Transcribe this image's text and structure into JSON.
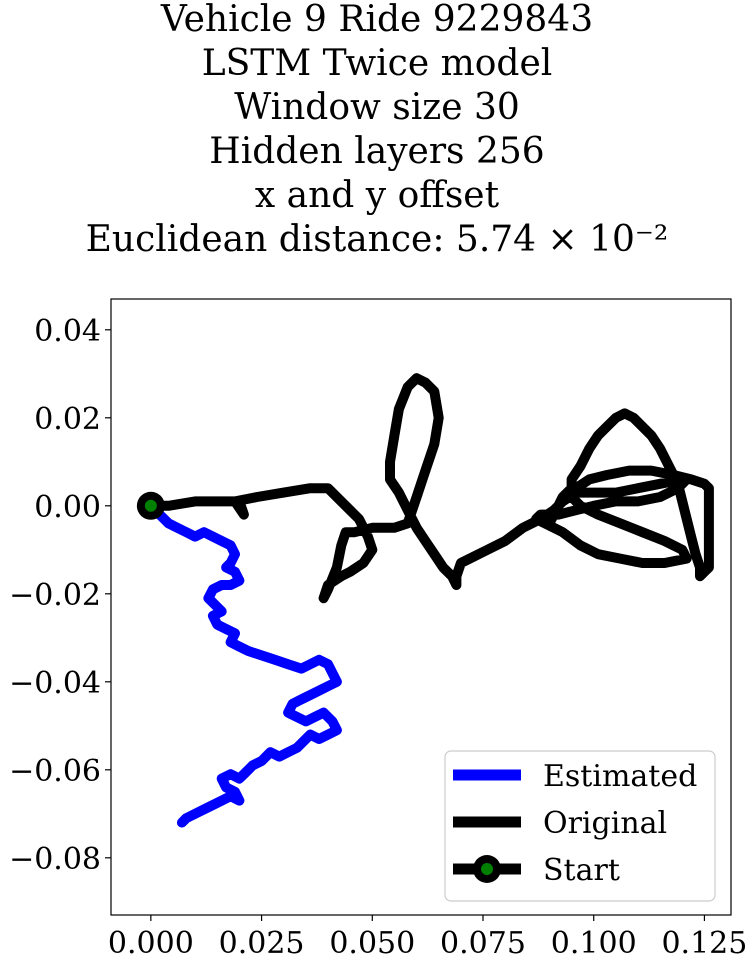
{
  "chart_data": {
    "type": "line",
    "title_lines": [
      "Vehicle 9 Ride 9229843",
      "LSTM Twice model",
      "Window size 30",
      "Hidden layers 256",
      "x and y offset",
      "Euclidean distance: 5.74 × 10⁻²"
    ],
    "xlim": [
      -0.009,
      0.131
    ],
    "ylim": [
      -0.093,
      0.047
    ],
    "xticks": [
      {
        "value": 0.0,
        "label": "0.000"
      },
      {
        "value": 0.025,
        "label": "0.025"
      },
      {
        "value": 0.05,
        "label": "0.050"
      },
      {
        "value": 0.075,
        "label": "0.075"
      },
      {
        "value": 0.1,
        "label": "0.100"
      },
      {
        "value": 0.125,
        "label": "0.125"
      }
    ],
    "yticks": [
      {
        "value": 0.04,
        "label": "0.04"
      },
      {
        "value": 0.02,
        "label": "0.02"
      },
      {
        "value": 0.0,
        "label": "0.00"
      },
      {
        "value": -0.02,
        "label": "−0.02"
      },
      {
        "value": -0.04,
        "label": "−0.04"
      },
      {
        "value": -0.06,
        "label": "−0.06"
      },
      {
        "value": -0.08,
        "label": "−0.08"
      }
    ],
    "grid": false,
    "legend_position": "bottom-right",
    "series": [
      {
        "name": "Estimated",
        "color": "#0000ff",
        "x": [
          0.0,
          0.002,
          0.004,
          0.006,
          0.008,
          0.01,
          0.012,
          0.014,
          0.016,
          0.018,
          0.019,
          0.018,
          0.017,
          0.019,
          0.02,
          0.018,
          0.016,
          0.014,
          0.013,
          0.015,
          0.016,
          0.014,
          0.015,
          0.017,
          0.019,
          0.018,
          0.02,
          0.022,
          0.025,
          0.028,
          0.031,
          0.034,
          0.036,
          0.038,
          0.04,
          0.041,
          0.042,
          0.04,
          0.038,
          0.036,
          0.034,
          0.032,
          0.031,
          0.033,
          0.035,
          0.037,
          0.039,
          0.041,
          0.042,
          0.04,
          0.038,
          0.036,
          0.034,
          0.033,
          0.031,
          0.029,
          0.027,
          0.025,
          0.023,
          0.022,
          0.021,
          0.02,
          0.018,
          0.016,
          0.017,
          0.019,
          0.02,
          0.018,
          0.016,
          0.014,
          0.012,
          0.01,
          0.008,
          0.007
        ],
        "y": [
          0.0,
          -0.002,
          -0.004,
          -0.005,
          -0.006,
          -0.007,
          -0.006,
          -0.007,
          -0.008,
          -0.009,
          -0.011,
          -0.013,
          -0.014,
          -0.015,
          -0.017,
          -0.018,
          -0.018,
          -0.019,
          -0.021,
          -0.023,
          -0.024,
          -0.025,
          -0.027,
          -0.028,
          -0.029,
          -0.031,
          -0.032,
          -0.033,
          -0.034,
          -0.035,
          -0.036,
          -0.037,
          -0.036,
          -0.035,
          -0.036,
          -0.038,
          -0.04,
          -0.041,
          -0.042,
          -0.043,
          -0.044,
          -0.045,
          -0.047,
          -0.048,
          -0.049,
          -0.048,
          -0.047,
          -0.049,
          -0.051,
          -0.052,
          -0.053,
          -0.052,
          -0.054,
          -0.055,
          -0.056,
          -0.057,
          -0.056,
          -0.058,
          -0.059,
          -0.06,
          -0.061,
          -0.062,
          -0.061,
          -0.062,
          -0.064,
          -0.065,
          -0.067,
          -0.066,
          -0.067,
          -0.068,
          -0.069,
          -0.07,
          -0.071,
          -0.072
        ]
      },
      {
        "name": "Original",
        "color": "#000000",
        "x": [
          0.0,
          0.004,
          0.01,
          0.015,
          0.02,
          0.021,
          0.019,
          0.024,
          0.03,
          0.036,
          0.04,
          0.043,
          0.045,
          0.047,
          0.049,
          0.05,
          0.048,
          0.045,
          0.043,
          0.04,
          0.039,
          0.04,
          0.042,
          0.043,
          0.044,
          0.046,
          0.05,
          0.055,
          0.058,
          0.06,
          0.062,
          0.064,
          0.065,
          0.064,
          0.062,
          0.06,
          0.058,
          0.056,
          0.055,
          0.054,
          0.054,
          0.056,
          0.058,
          0.06,
          0.062,
          0.064,
          0.066,
          0.068,
          0.069,
          0.069,
          0.07,
          0.072,
          0.076,
          0.08,
          0.084,
          0.088,
          0.091,
          0.093,
          0.096,
          0.1,
          0.105,
          0.11,
          0.115,
          0.12,
          0.121,
          0.119,
          0.115,
          0.11,
          0.105,
          0.1,
          0.096,
          0.092,
          0.088,
          0.087,
          0.089,
          0.093,
          0.097,
          0.101,
          0.106,
          0.111,
          0.116,
          0.121,
          0.12,
          0.116,
          0.111,
          0.106,
          0.101,
          0.097,
          0.095,
          0.096,
          0.099,
          0.103,
          0.108,
          0.113,
          0.118,
          0.122,
          0.125,
          0.126,
          0.126,
          0.126,
          0.126,
          0.126,
          0.126,
          0.125,
          0.124,
          0.124,
          0.124,
          0.123,
          0.122,
          0.121,
          0.12,
          0.119,
          0.117,
          0.115,
          0.113,
          0.111,
          0.109,
          0.107,
          0.105,
          0.103,
          0.101,
          0.099,
          0.097,
          0.095,
          0.095,
          0.093,
          0.092,
          0.091,
          0.09
        ],
        "y": [
          0.0,
          0.0,
          0.001,
          0.001,
          0.001,
          -0.002,
          0.001,
          0.002,
          0.003,
          0.004,
          0.004,
          0.001,
          -0.001,
          -0.003,
          -0.007,
          -0.01,
          -0.013,
          -0.015,
          -0.016,
          -0.018,
          -0.021,
          -0.019,
          -0.014,
          -0.009,
          -0.006,
          -0.006,
          -0.005,
          -0.005,
          -0.004,
          0.002,
          0.008,
          0.014,
          0.02,
          0.026,
          0.028,
          0.029,
          0.027,
          0.022,
          0.016,
          0.01,
          0.006,
          0.003,
          -0.001,
          -0.005,
          -0.008,
          -0.011,
          -0.014,
          -0.016,
          -0.018,
          -0.016,
          -0.013,
          -0.012,
          -0.01,
          -0.008,
          -0.005,
          -0.003,
          -0.001,
          0.001,
          0.003,
          0.003,
          0.003,
          0.004,
          0.005,
          0.006,
          0.006,
          0.004,
          0.002,
          0.001,
          0.001,
          0.0,
          -0.001,
          -0.002,
          -0.002,
          -0.003,
          -0.004,
          -0.006,
          -0.009,
          -0.011,
          -0.012,
          -0.013,
          -0.013,
          -0.012,
          -0.01,
          -0.008,
          -0.006,
          -0.004,
          -0.002,
          0.0,
          0.002,
          0.004,
          0.006,
          0.007,
          0.008,
          0.008,
          0.007,
          0.006,
          0.005,
          0.004,
          0.001,
          -0.003,
          -0.007,
          -0.011,
          -0.014,
          -0.015,
          -0.016,
          -0.016,
          -0.014,
          -0.011,
          -0.007,
          -0.003,
          0.001,
          0.005,
          0.009,
          0.013,
          0.016,
          0.018,
          0.02,
          0.021,
          0.02,
          0.018,
          0.016,
          0.013,
          0.009,
          0.006,
          0.004,
          0.002,
          0.0,
          -0.002,
          -0.004
        ]
      }
    ],
    "start": {
      "name": "Start",
      "x": 0.0,
      "y": 0.0,
      "outer_color": "#000000",
      "inner_color": "#008000"
    }
  }
}
